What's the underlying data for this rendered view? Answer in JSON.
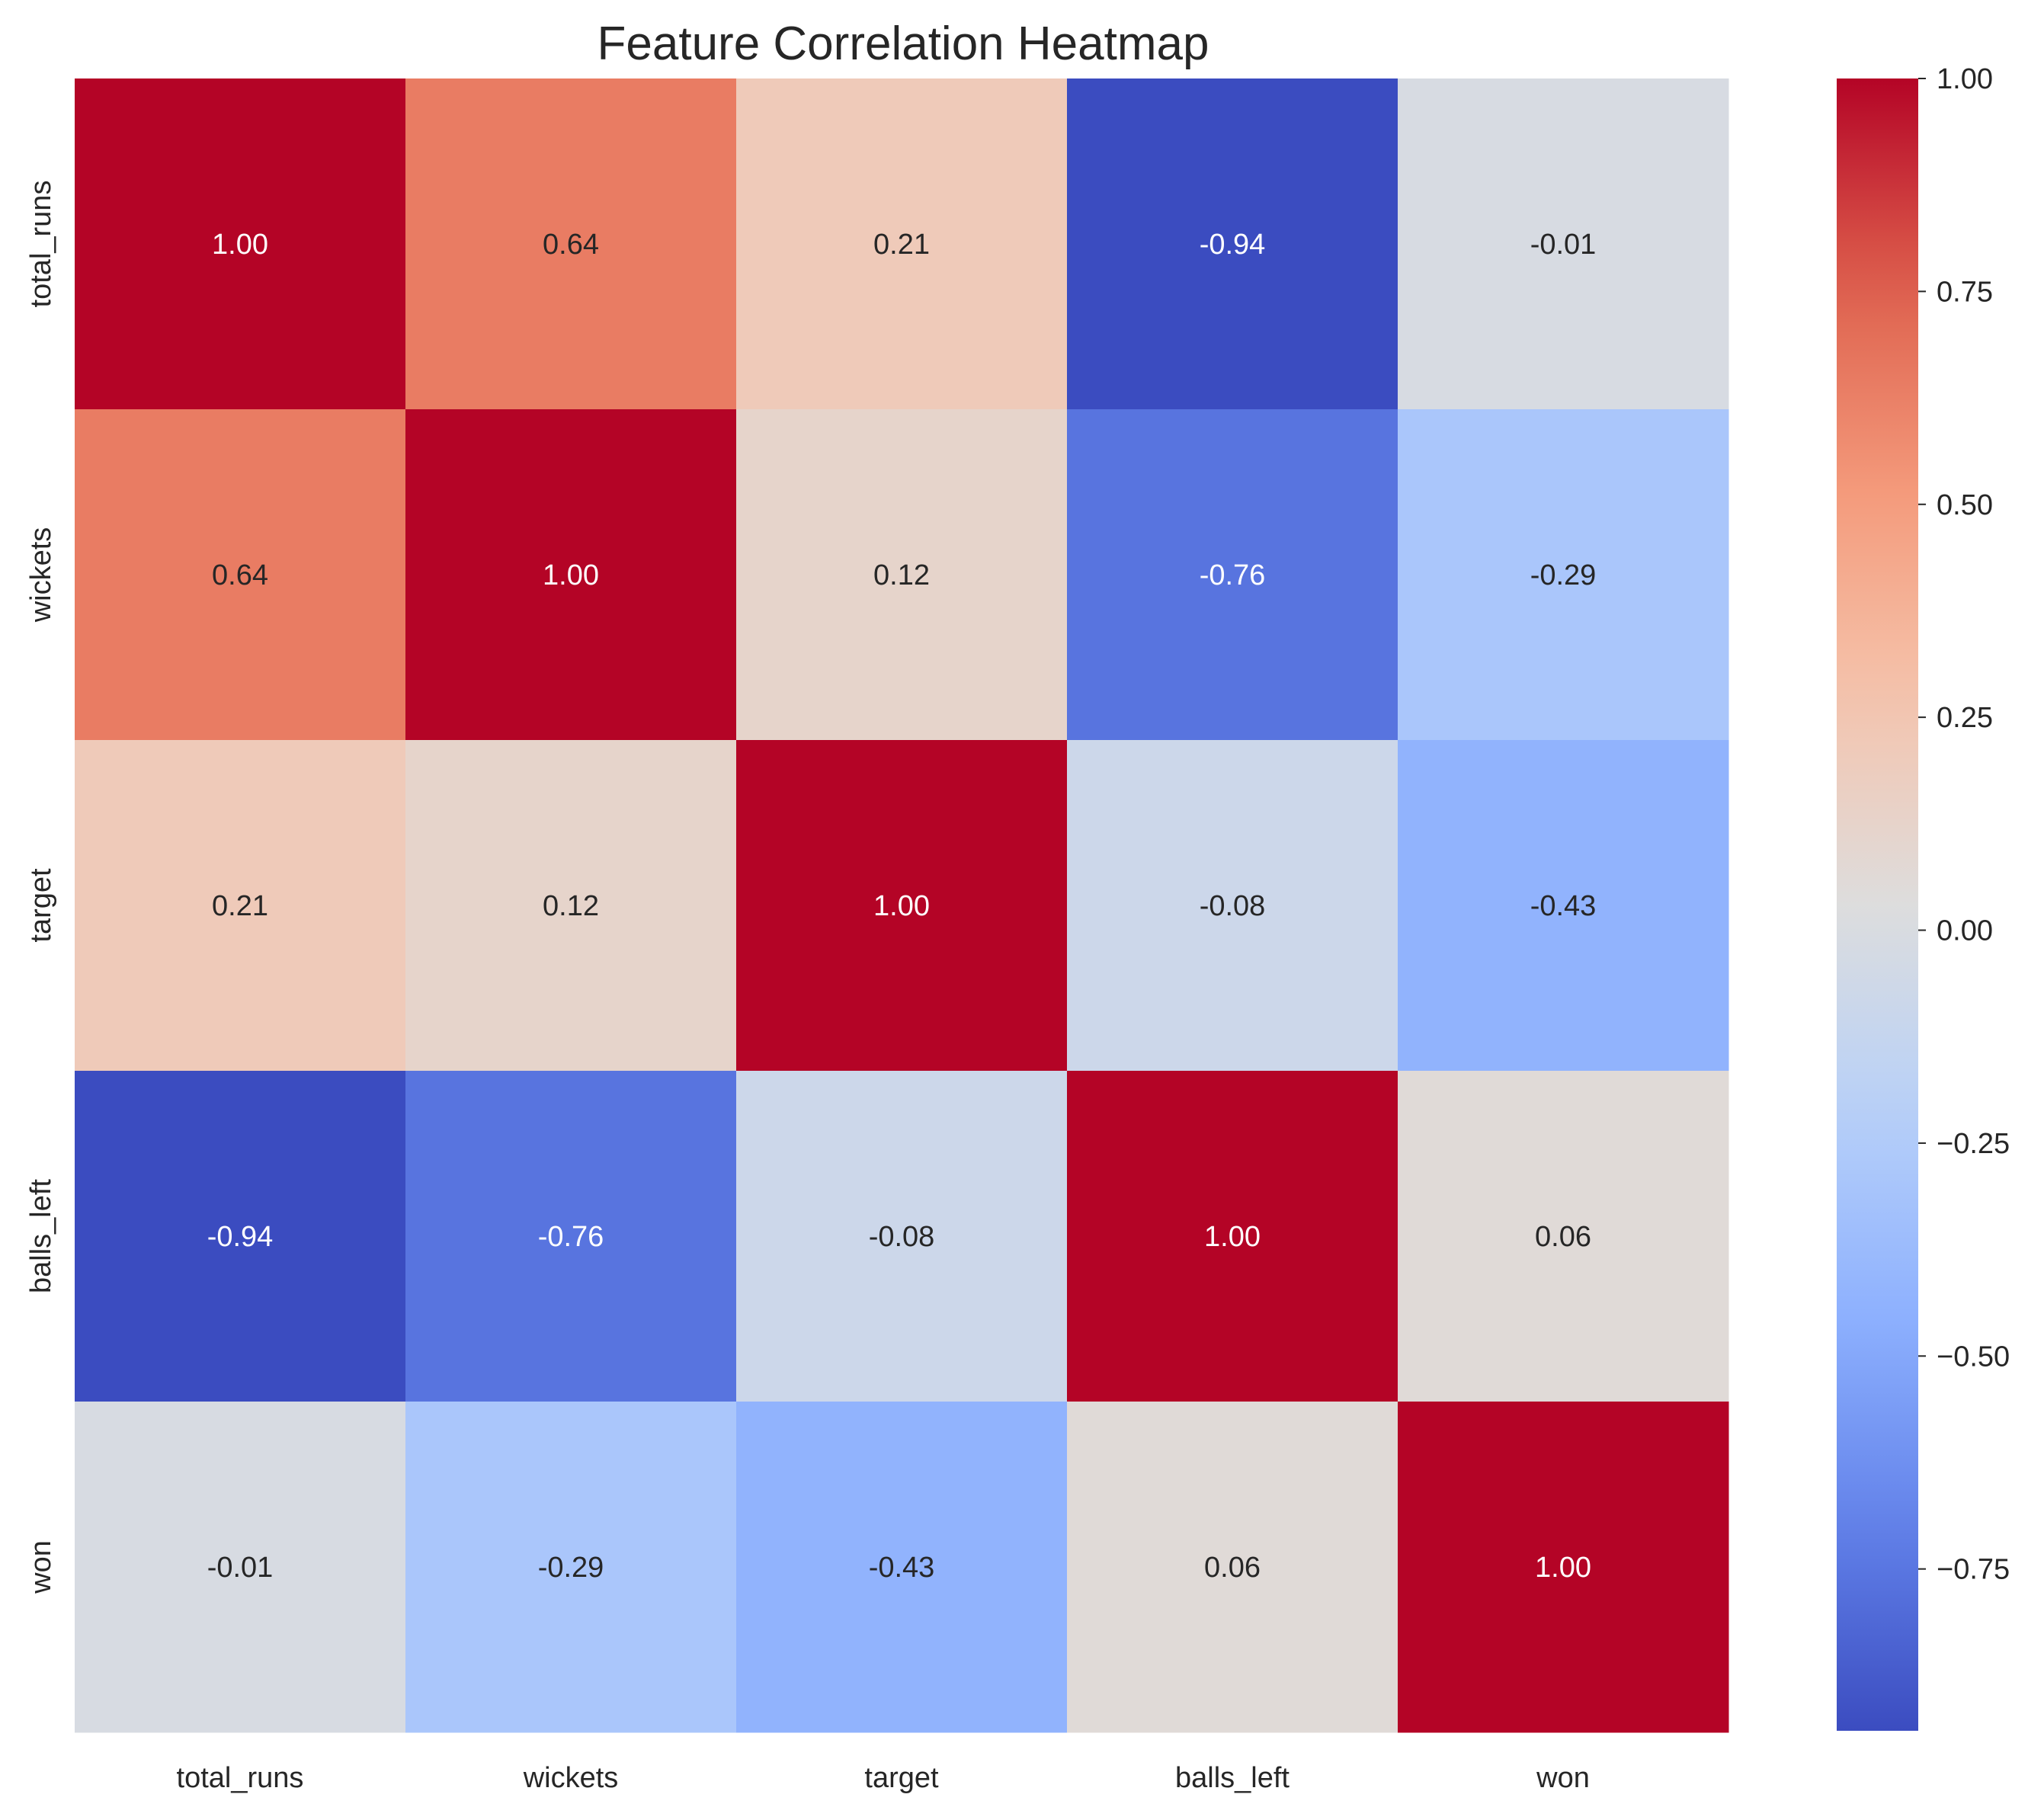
{
  "chart_data": {
    "type": "heatmap",
    "title": "Feature Correlation Heatmap",
    "xlabel": "",
    "ylabel": "",
    "x_categories": [
      "total_runs",
      "wickets",
      "target",
      "balls_left",
      "won"
    ],
    "y_categories": [
      "total_runs",
      "wickets",
      "target",
      "balls_left",
      "won"
    ],
    "values": [
      [
        1.0,
        0.64,
        0.21,
        -0.94,
        -0.01
      ],
      [
        0.64,
        1.0,
        0.12,
        -0.76,
        -0.29
      ],
      [
        0.21,
        0.12,
        1.0,
        -0.08,
        -0.43
      ],
      [
        -0.94,
        -0.76,
        -0.08,
        1.0,
        0.06
      ],
      [
        -0.01,
        -0.29,
        -0.43,
        0.06,
        1.0
      ]
    ],
    "cell_labels": [
      [
        "1.00",
        "0.64",
        "0.21",
        "-0.94",
        "-0.01"
      ],
      [
        "0.64",
        "1.00",
        "0.12",
        "-0.76",
        "-0.29"
      ],
      [
        "0.21",
        "0.12",
        "1.00",
        "-0.08",
        "-0.43"
      ],
      [
        "-0.94",
        "-0.76",
        "-0.08",
        "1.00",
        "0.06"
      ],
      [
        "-0.01",
        "-0.29",
        "-0.43",
        "0.06",
        "1.00"
      ]
    ],
    "colormap": "coolwarm",
    "colorbar": {
      "vmin": -0.94,
      "vmax": 1.0,
      "ticks": [
        1.0,
        0.75,
        0.5,
        0.25,
        0.0,
        -0.25,
        -0.5,
        -0.75
      ],
      "tick_labels": [
        "1.00",
        "0.75",
        "0.50",
        "0.25",
        "0.00",
        "−0.25",
        "−0.50",
        "−0.75"
      ]
    },
    "grid": false,
    "legend": "colorbar-right"
  }
}
